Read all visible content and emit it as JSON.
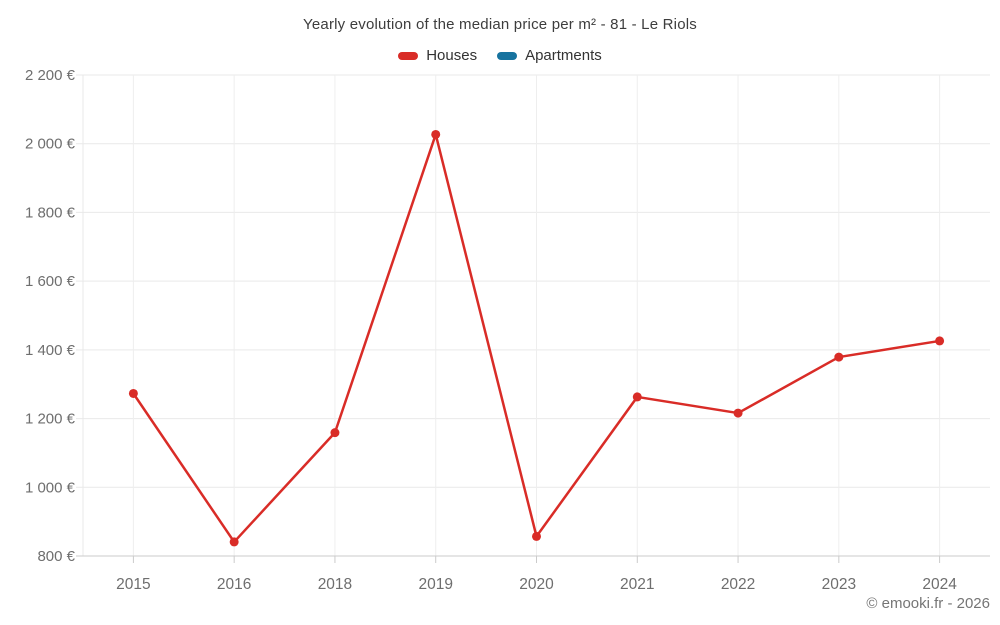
{
  "chart_data": {
    "type": "line",
    "title": "Yearly evolution of the median price per m² - 81 - Le Riols",
    "categories": [
      "2015",
      "2016",
      "2018",
      "2019",
      "2020",
      "2021",
      "2022",
      "2023",
      "2024"
    ],
    "series": [
      {
        "name": "Houses",
        "color": "#d92c27",
        "values": [
          1273,
          841,
          1159,
          2027,
          857,
          1263,
          1216,
          1379,
          1426
        ]
      },
      {
        "name": "Apartments",
        "color": "#17739f",
        "values": []
      }
    ],
    "ylim": [
      800,
      2200
    ],
    "y_tick_step": 200,
    "y_tick_labels": [
      "800 €",
      "1 000 €",
      "1 200 €",
      "1 400 €",
      "1 600 €",
      "1 800 €",
      "2 000 €",
      "2 200 €"
    ],
    "grid": true,
    "legend_position": "top",
    "xlabel": "",
    "ylabel": ""
  },
  "footer": {
    "credit": "© emooki.fr - 2026"
  }
}
